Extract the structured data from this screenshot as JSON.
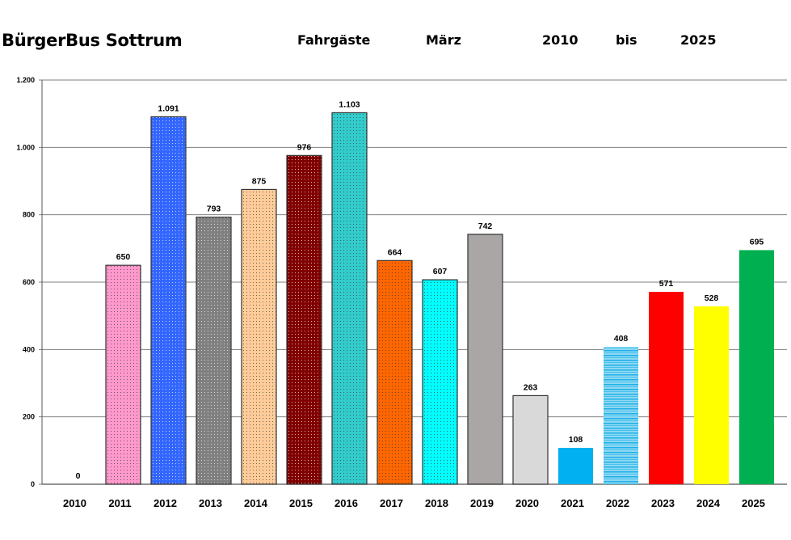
{
  "header": {
    "title": "BürgerBus Sottrum",
    "metric": "Fahrgäste",
    "month": "März",
    "from_year": "2010",
    "bis": "bis",
    "to_year": "2025"
  },
  "chart_data": {
    "type": "bar",
    "title": "BürgerBus Sottrum Fahrgäste März 2010 bis 2025",
    "xlabel": "",
    "ylabel": "",
    "ylim": [
      0,
      1200
    ],
    "yticks": [
      0,
      200,
      400,
      600,
      800,
      1000,
      1200
    ],
    "ytick_labels": [
      "0",
      "200",
      "400",
      "600",
      "800",
      "1.000",
      "1.200"
    ],
    "grid": true,
    "categories": [
      "2010",
      "2011",
      "2012",
      "2013",
      "2014",
      "2015",
      "2016",
      "2017",
      "2018",
      "2019",
      "2020",
      "2021",
      "2022",
      "2023",
      "2024",
      "2025"
    ],
    "values": [
      0,
      650,
      1091,
      793,
      875,
      976,
      1103,
      664,
      607,
      742,
      263,
      108,
      408,
      571,
      528,
      695
    ],
    "value_labels": [
      "0",
      "650",
      "1.091",
      "793",
      "875",
      "976",
      "1.103",
      "664",
      "607",
      "742",
      "263",
      "108",
      "408",
      "571",
      "528",
      "695"
    ],
    "colors": [
      "#ffffff",
      "#ff99cc",
      "#3366ff",
      "#808080",
      "#ffcc99",
      "#800000",
      "#33cccc",
      "#ff6600",
      "#00ffff",
      "#aaa6a6",
      "#d9d9d9",
      "#00b0f0",
      "#7fd3f0",
      "#ff0000",
      "#ffff00",
      "#00b050"
    ],
    "dotted": [
      false,
      true,
      true,
      true,
      true,
      true,
      true,
      true,
      true,
      false,
      false,
      false,
      false,
      false,
      false,
      false
    ],
    "bordered": [
      false,
      true,
      true,
      true,
      true,
      true,
      true,
      true,
      true,
      true,
      true,
      false,
      false,
      false,
      false,
      false
    ]
  }
}
